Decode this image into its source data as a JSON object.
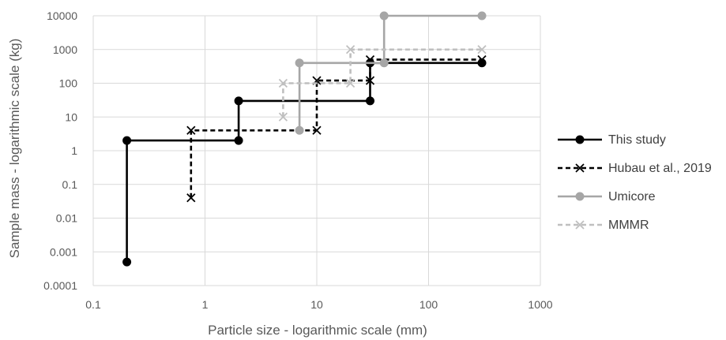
{
  "chart_data": {
    "type": "line",
    "x_scale": "log",
    "y_scale": "log",
    "xlabel": "Particle size - logarithmic scale (mm)",
    "ylabel": "Sample mass - logarithmic scale (kg)",
    "xlim": [
      0.1,
      1000
    ],
    "ylim": [
      0.0001,
      10000
    ],
    "x_ticks": [
      "0.1",
      "1",
      "10",
      "100",
      "1000"
    ],
    "y_ticks": [
      "0.0001",
      "0.001",
      "0.01",
      "0.1",
      "1",
      "10",
      "100",
      "1000",
      "10000"
    ],
    "grid": true,
    "legend_position": "right",
    "series": [
      {
        "name": "This study",
        "color": "#000000",
        "dash": "solid",
        "marker": "circle",
        "points": [
          [
            0.2,
            0.0005
          ],
          [
            0.2,
            2
          ],
          [
            2,
            2
          ],
          [
            2,
            30
          ],
          [
            30,
            30
          ],
          [
            30,
            400
          ],
          [
            300,
            400
          ]
        ],
        "markers": [
          [
            0.2,
            0.0005
          ],
          [
            0.2,
            2
          ],
          [
            2,
            2
          ],
          [
            2,
            30
          ],
          [
            30,
            30
          ],
          [
            30,
            400
          ],
          [
            300,
            400
          ]
        ]
      },
      {
        "name": "Hubau et al., 2019",
        "color": "#000000",
        "dash": "dashed",
        "marker": "x",
        "points": [
          [
            0.75,
            0.04
          ],
          [
            0.75,
            4
          ],
          [
            10,
            4
          ],
          [
            10,
            120
          ],
          [
            30,
            120
          ],
          [
            30,
            500
          ],
          [
            300,
            500
          ]
        ],
        "markers": [
          [
            0.75,
            0.04
          ],
          [
            0.75,
            4
          ],
          [
            10,
            4
          ],
          [
            10,
            120
          ],
          [
            30,
            120
          ],
          [
            30,
            500
          ],
          [
            300,
            500
          ]
        ]
      },
      {
        "name": "Umicore",
        "color": "#a6a6a6",
        "dash": "solid",
        "marker": "circle",
        "points": [
          [
            7,
            4
          ],
          [
            7,
            400
          ],
          [
            40,
            400
          ],
          [
            40,
            10000
          ],
          [
            300,
            10000
          ]
        ],
        "markers": [
          [
            7,
            4
          ],
          [
            7,
            400
          ],
          [
            40,
            400
          ],
          [
            40,
            10000
          ],
          [
            300,
            10000
          ]
        ]
      },
      {
        "name": "MMMR",
        "color": "#bfbfbf",
        "dash": "dashed",
        "marker": "x",
        "points": [
          [
            5,
            10
          ],
          [
            5,
            100
          ],
          [
            20,
            100
          ],
          [
            20,
            1000
          ],
          [
            300,
            1000
          ]
        ],
        "markers": [
          [
            5,
            10
          ],
          [
            5,
            100
          ],
          [
            20,
            100
          ],
          [
            20,
            1000
          ],
          [
            300,
            1000
          ]
        ]
      }
    ]
  }
}
